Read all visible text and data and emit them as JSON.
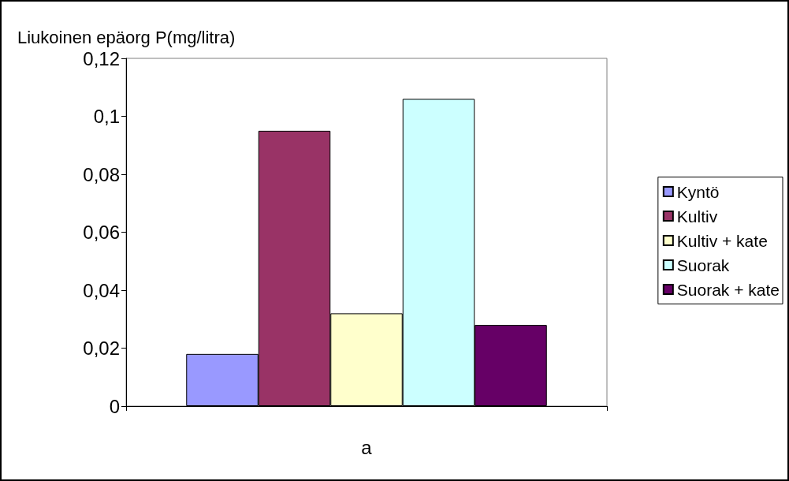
{
  "chart_data": {
    "type": "bar",
    "ylabel": "Liukoinen epäorg P(mg/litra)",
    "categories": [
      "a"
    ],
    "series": [
      {
        "name": "Kyntö",
        "color": "#9999ff",
        "values": [
          0.018
        ]
      },
      {
        "name": "Kultiv",
        "color": "#993366",
        "values": [
          0.095
        ]
      },
      {
        "name": "Kultiv + kate",
        "color": "#ffffcc",
        "values": [
          0.032
        ]
      },
      {
        "name": "Suorak",
        "color": "#ccffff",
        "values": [
          0.106
        ]
      },
      {
        "name": "Suorak + kate",
        "color": "#660066",
        "values": [
          0.028
        ]
      }
    ],
    "ylim": [
      0,
      0.12
    ],
    "yticks": [
      {
        "value": 0,
        "label": "0"
      },
      {
        "value": 0.02,
        "label": "0,02"
      },
      {
        "value": 0.04,
        "label": "0,04"
      },
      {
        "value": 0.06,
        "label": "0,06"
      },
      {
        "value": 0.08,
        "label": "0,08"
      },
      {
        "value": 0.1,
        "label": "0,1"
      },
      {
        "value": 0.12,
        "label": "0,12"
      }
    ],
    "grid": false,
    "legend": "right"
  }
}
